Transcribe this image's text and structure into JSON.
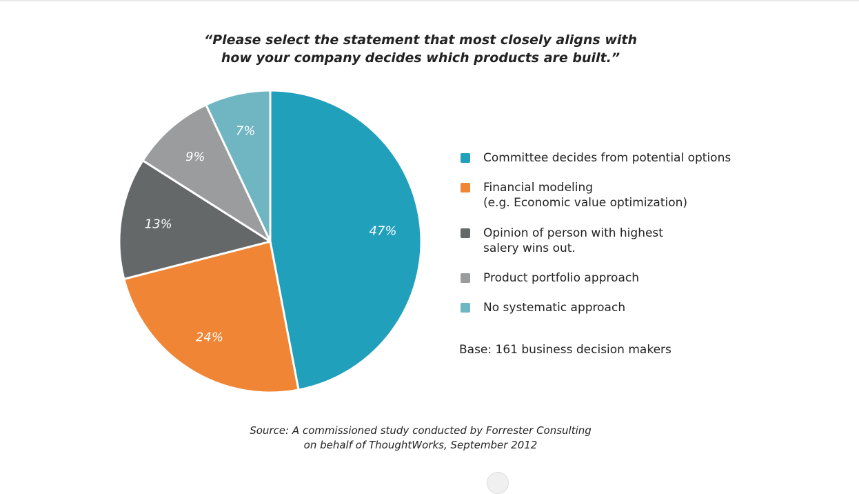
{
  "title": {
    "line1": "“Please select the statement that most closely aligns with",
    "line2": "how your company decides which products are built.”"
  },
  "legend": {
    "items": [
      {
        "lines": [
          "Committee decides from potential options"
        ]
      },
      {
        "lines": [
          "Financial modeling",
          "(e.g. Economic value optimization)"
        ]
      },
      {
        "lines": [
          "Opinion of person with highest",
          "salery wins out."
        ]
      },
      {
        "lines": [
          "Product portfolio approach"
        ]
      },
      {
        "lines": [
          "No systematic approach"
        ]
      }
    ]
  },
  "base_note": "Base: 161 business decision makers",
  "source": {
    "line1": "Source: A commissioned study conducted by Forrester Consulting",
    "line2": "on behalf of ThoughtWorks, September 2012"
  },
  "chart_data": {
    "type": "pie",
    "categories": [
      "Committee decides from potential options",
      "Financial modeling (e.g. Economic value optimization)",
      "Opinion of person with highest salery wins out.",
      "Product portfolio approach",
      "No systematic approach"
    ],
    "values": [
      47,
      24,
      13,
      9,
      7
    ],
    "labels": [
      "47%",
      "24%",
      "13%",
      "9%",
      "7%"
    ],
    "colors": [
      "#21a0bc",
      "#f08535",
      "#656869",
      "#9a9c9d",
      "#6fb5c2"
    ],
    "start": "12 o'clock, clockwise",
    "legend_position": "right"
  }
}
